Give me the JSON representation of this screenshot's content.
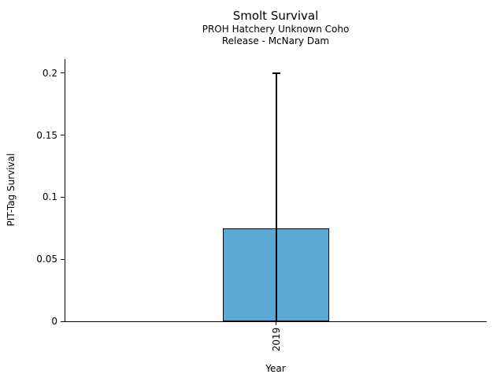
{
  "chart_data": {
    "type": "bar",
    "title": "Smolt Survival",
    "subtitle": [
      "PROH Hatchery Unknown Coho",
      "Release - McNary Dam"
    ],
    "xlabel": "Year",
    "ylabel": "PIT-Tag Survival",
    "categories": [
      "2019"
    ],
    "values": [
      0.075
    ],
    "error_upper": [
      0.2
    ],
    "error_lower_drawn_to": [
      0
    ],
    "yticks": [
      0,
      0.05,
      0.1,
      0.15,
      0.2
    ],
    "ytick_labels": [
      "0",
      "0.05",
      "0.1",
      "0.15",
      "0.2"
    ],
    "ylim": [
      0,
      0.2114
    ],
    "grid": false,
    "legend": null,
    "bar_color": "#5BA8D4",
    "bar_edge_color": "#000000",
    "errorbar_color": "#000000"
  }
}
